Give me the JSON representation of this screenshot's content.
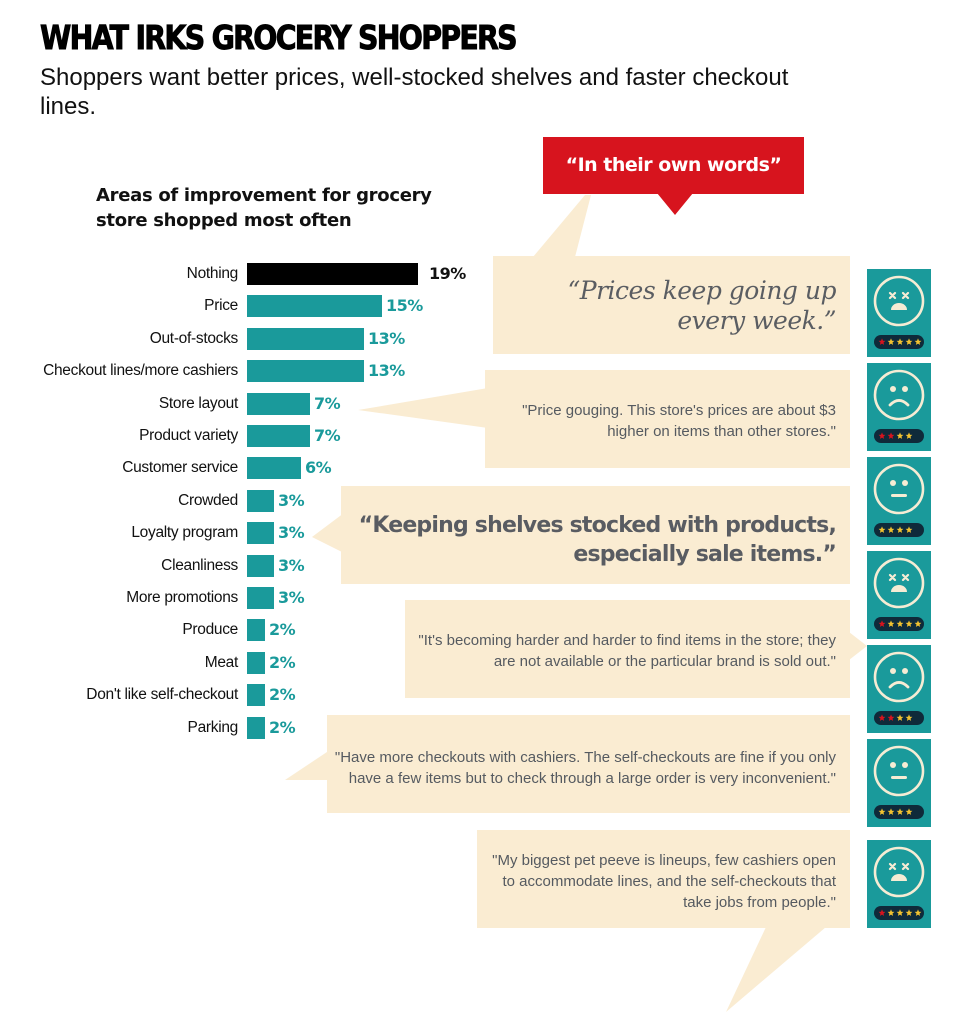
{
  "header": {
    "title": "WHAT IRKS GROCERY SHOPPERS",
    "subtitle": "Shoppers want better prices, well-stocked shelves and faster checkout lines."
  },
  "chart": {
    "title": "Areas of improvement for grocery store shopped most often"
  },
  "chart_data": {
    "type": "bar",
    "orientation": "horizontal",
    "title": "Areas of improvement for grocery store shopped most often",
    "xlabel": "",
    "ylabel": "",
    "categories": [
      "Nothing",
      "Price",
      "Out-of-stocks",
      "Checkout lines/more cashiers",
      "Store layout",
      "Product variety",
      "Customer service",
      "Crowded",
      "Loyalty program",
      "Cleanliness",
      "More promotions",
      "Produce",
      "Meat",
      "Don't like self-checkout",
      "Parking"
    ],
    "values": [
      19,
      15,
      13,
      13,
      7,
      7,
      6,
      3,
      3,
      3,
      3,
      2,
      2,
      2,
      2
    ],
    "value_labels": [
      "19%",
      "15%",
      "13%",
      "13%",
      "7%",
      "7%",
      "6%",
      "3%",
      "3%",
      "3%",
      "3%",
      "2%",
      "2%",
      "2%",
      "2%"
    ],
    "colors": [
      "#000000",
      "#1a9a9b",
      "#1a9a9b",
      "#1a9a9b",
      "#1a9a9b",
      "#1a9a9b",
      "#1a9a9b",
      "#1a9a9b",
      "#1a9a9b",
      "#1a9a9b",
      "#1a9a9b",
      "#1a9a9b",
      "#1a9a9b",
      "#1a9a9b",
      "#1a9a9b"
    ],
    "unit": "%",
    "grid": false,
    "legend": null
  },
  "quotes_section": {
    "banner": "“In their own words”",
    "quotes": [
      {
        "text_line1": "“Prices keep going up",
        "text_line2": "every week.”",
        "face": "dead",
        "stars": "1 red, 4 yellow"
      },
      {
        "text_line1": "\"Price gouging. This store's prices are about $3",
        "text_line2": "higher on items than other stores.\"",
        "face": "sad",
        "stars": "2 red, 2 yellow"
      },
      {
        "text_line1": "“Keeping shelves stocked with products,",
        "text_line2": "especially sale items.”",
        "face": "neutral",
        "stars": "4 yellow"
      },
      {
        "text_line1": "\"It's becoming harder and harder to find items in the store; they",
        "text_line2": "are not available or the particular brand is sold out.\"",
        "face": "dead",
        "stars": "1 red, 4 yellow"
      },
      {
        "text_line1": "",
        "text_line2": "",
        "face": "sad",
        "stars": "2 red, 2 yellow"
      },
      {
        "text_line1": "\"Have more checkouts with cashiers. The self-checkouts are fine if you only",
        "text_line2": "have a few items but to check through a large order is very inconvenient.\"",
        "face": "neutral",
        "stars": "4 yellow"
      },
      {
        "text_line1": "\"My biggest pet peeve is lineups, few cashiers open",
        "text_line2": "to accommodate lines, and the self-checkouts that",
        "text_line3": "take jobs from people.\"",
        "face": "dead",
        "stars": "1 red, 4 yellow"
      }
    ]
  },
  "colors": {
    "teal": "#1a9a9b",
    "black": "#000000",
    "red_banner": "#d7141e",
    "bubble": "#faecd2",
    "quote_text": "#555a60",
    "face_line": "#f6ecd4",
    "star_yellow": "#f2c230",
    "star_red": "#d7141e",
    "rating_pill": "#0f2a3a"
  }
}
